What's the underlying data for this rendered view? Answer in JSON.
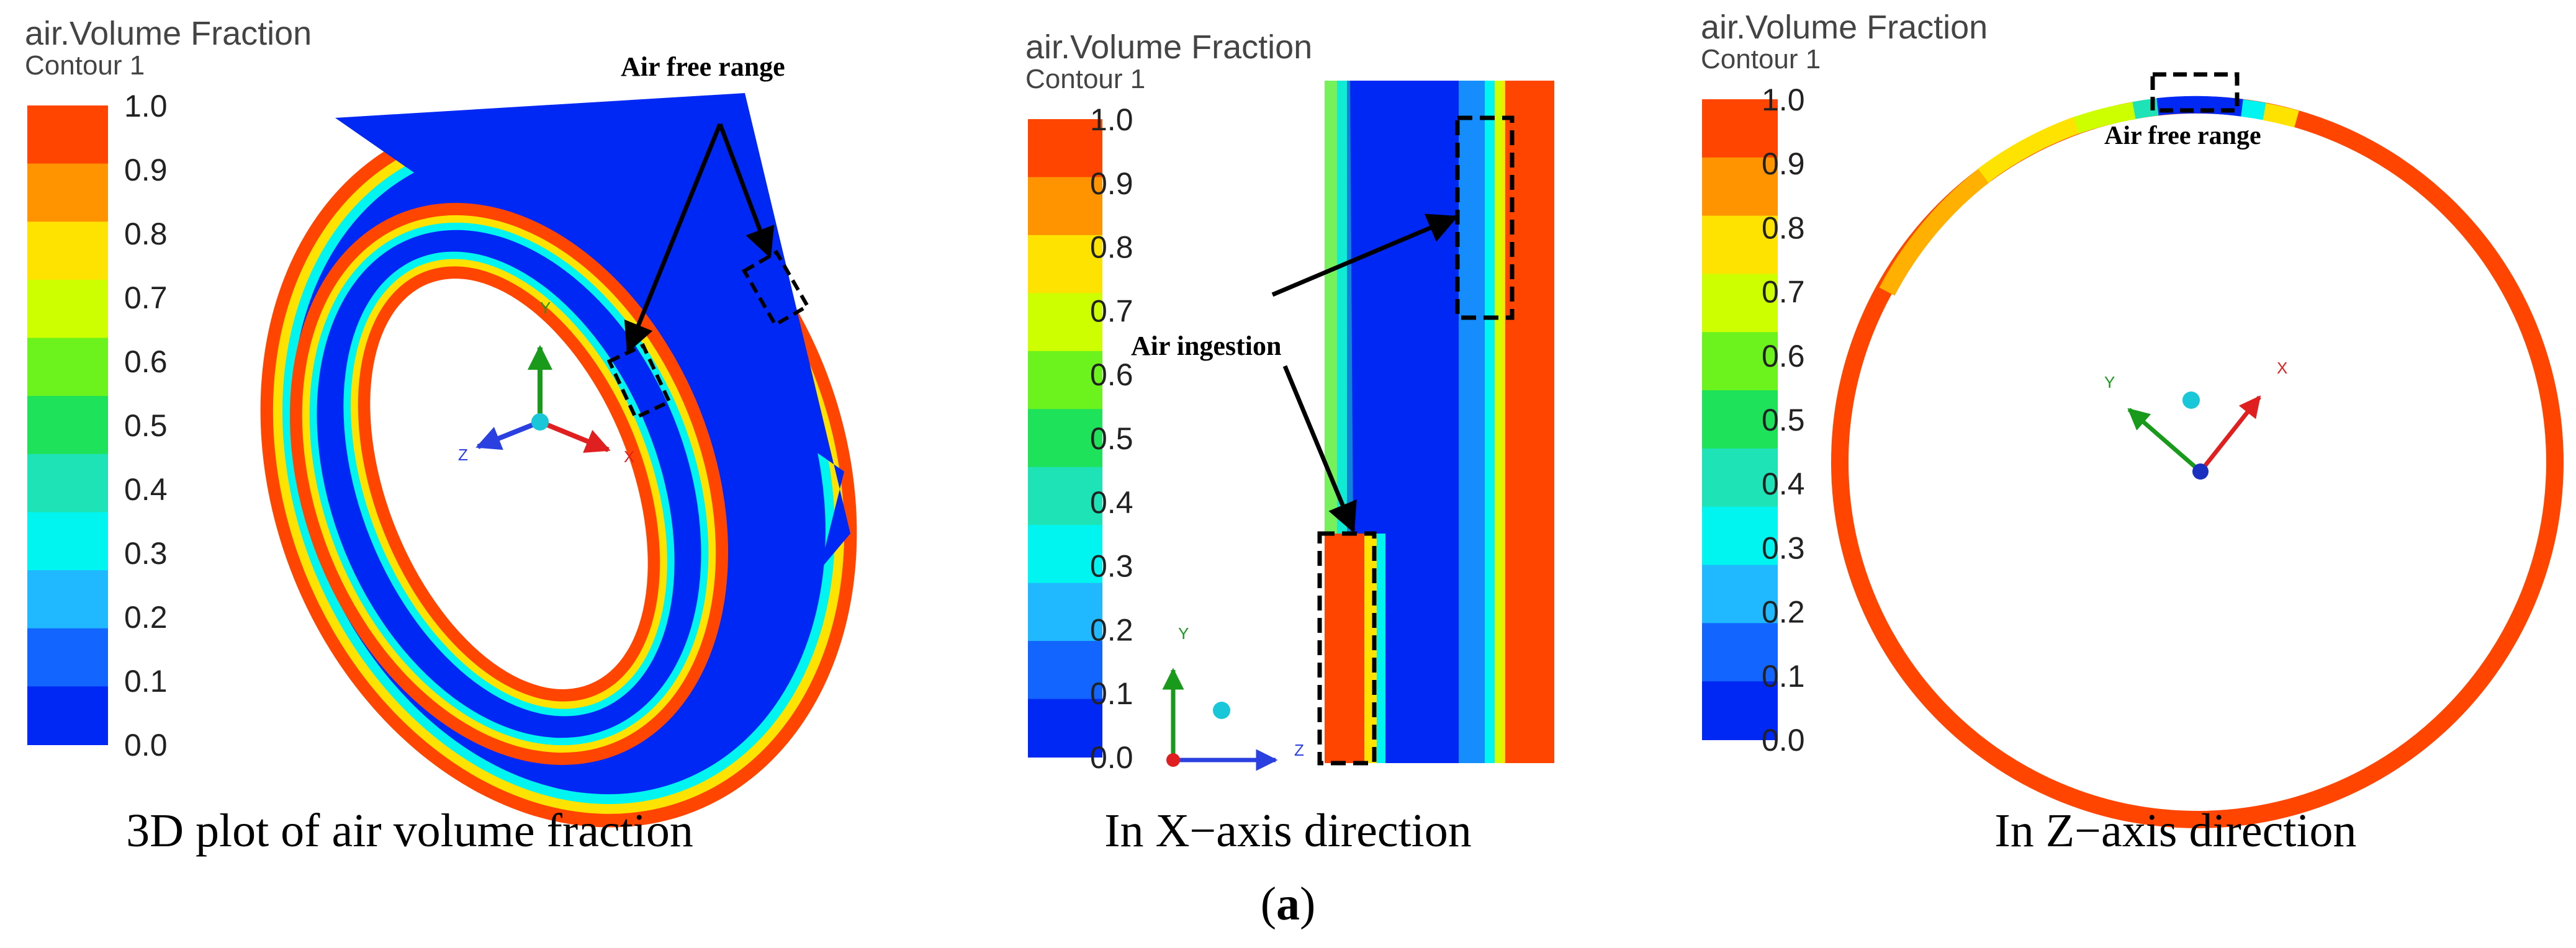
{
  "panels": {
    "left": {
      "title": "air.Volume Fraction",
      "subtitle": "Contour 1",
      "annotation": "Air free range",
      "caption": "3D plot of air volume fraction",
      "axes": [
        "Y",
        "Z",
        "X"
      ]
    },
    "middle": {
      "title": "air.Volume Fraction",
      "subtitle": "Contour 1",
      "annotation": "Air ingestion",
      "caption": "In X−axis direction",
      "axes": [
        "Y",
        "Z"
      ]
    },
    "right": {
      "title": "air.Volume Fraction",
      "subtitle": "Contour 1",
      "annotation": "Air free range",
      "caption": "In Z−axis direction",
      "axes": [
        "Y",
        "X"
      ]
    }
  },
  "legend": {
    "ticks": [
      "1.0",
      "0.9",
      "0.8",
      "0.7",
      "0.6",
      "0.5",
      "0.4",
      "0.3",
      "0.2",
      "0.1",
      "0.0"
    ],
    "colors": [
      "#ff4500",
      "#ff9400",
      "#ffe300",
      "#ceff00",
      "#6cf21c",
      "#1ee35a",
      "#1ee3b6",
      "#00f4f0",
      "#20b8ff",
      "#1266ff",
      "#0028f5"
    ]
  },
  "figure_label_prefix": "(",
  "figure_label_letter": "a",
  "figure_label_suffix": ")"
}
